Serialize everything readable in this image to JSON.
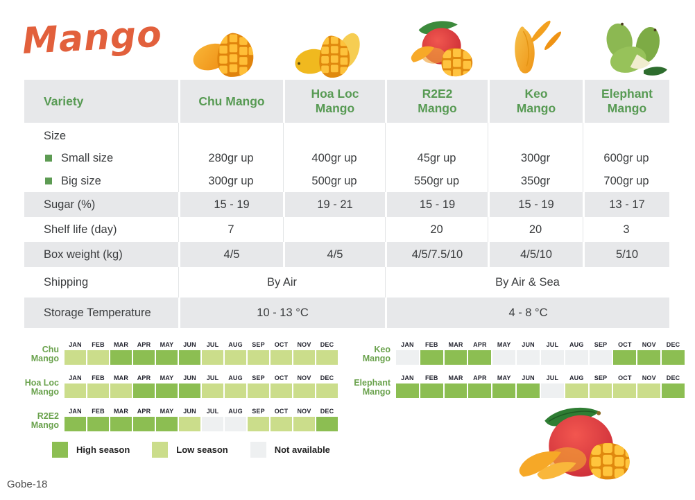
{
  "page": {
    "title": "Mango",
    "footer": "Gobe-18",
    "colors": {
      "accent_green": "#579a53",
      "title_orange": "#e2603c",
      "row_gray": "#e7e8ea"
    }
  },
  "images": {
    "chu": "chu-mango-photo",
    "hoa_loc": "hoa-loc-mango-photo",
    "r2e2": "r2e2-mango-photo",
    "keo": "keo-mango-photo",
    "elephant": "elephant-mango-photo",
    "decoration": "mango-photo"
  },
  "table": {
    "columns": [
      "Variety",
      "Chu Mango",
      "Hoa Loc Mango",
      "R2E2 Mango",
      "Keo Mango",
      "Elephant Mango"
    ],
    "size": {
      "label": "Size",
      "small_label": "Small size",
      "big_label": "Big size",
      "small": [
        "280gr up",
        "400gr up",
        "45gr up",
        "300gr",
        "600gr up"
      ],
      "big": [
        "300gr up",
        "500gr up",
        "550gr up",
        "350gr",
        "700gr up"
      ]
    },
    "sugar": {
      "label": "Sugar (%)",
      "values": [
        "15 - 19",
        "19 - 21",
        "15 - 19",
        "15 - 19",
        "13 - 17"
      ]
    },
    "shelf_life": {
      "label": "Shelf life (day)",
      "values": [
        "7",
        "",
        "20",
        "20",
        "3"
      ]
    },
    "box_weight": {
      "label": "Box weight (kg)",
      "values": [
        "4/5",
        "4/5",
        "4/5/7.5/10",
        "4/5/10",
        "5/10"
      ]
    },
    "shipping": {
      "label": "Shipping",
      "air": "By Air",
      "air_sea": "By Air & Sea"
    },
    "storage": {
      "label": "Storage Temperature",
      "cold": "10 - 13 °C",
      "warm": "4 - 8 °C"
    }
  },
  "calendars": {
    "months": [
      "JAN",
      "FEB",
      "MAR",
      "APR",
      "MAY",
      "JUN",
      "JUL",
      "AUG",
      "SEP",
      "OCT",
      "NOV",
      "DEC"
    ],
    "colors": {
      "high": "#8cbe52",
      "low": "#cbdd8b",
      "na": "#eef0f1"
    },
    "rows": [
      {
        "id": "chu",
        "block": "left",
        "label_lines": [
          "Chu",
          "Mango"
        ],
        "cells": [
          "low",
          "low",
          "high",
          "high",
          "high",
          "high",
          "low",
          "low",
          "low",
          "low",
          "low",
          "low"
        ]
      },
      {
        "id": "hoa-loc",
        "block": "left",
        "label_lines": [
          "Hoa Loc",
          "Mango"
        ],
        "cells": [
          "low",
          "low",
          "low",
          "high",
          "high",
          "high",
          "low",
          "low",
          "low",
          "low",
          "low",
          "low"
        ]
      },
      {
        "id": "r2e2",
        "block": "left",
        "label_lines": [
          "R2E2",
          "Mango"
        ],
        "cells": [
          "high",
          "high",
          "high",
          "high",
          "high",
          "low",
          "na",
          "na",
          "low",
          "low",
          "low",
          "high"
        ]
      },
      {
        "id": "keo",
        "block": "right",
        "label_lines": [
          "Keo",
          "Mango"
        ],
        "cells": [
          "na",
          "high",
          "high",
          "high",
          "na",
          "na",
          "na",
          "na",
          "na",
          "high",
          "high",
          "high"
        ]
      },
      {
        "id": "elephant",
        "block": "right",
        "label_lines": [
          "Elephant",
          "Mango"
        ],
        "cells": [
          "high",
          "high",
          "high",
          "high",
          "high",
          "high",
          "na",
          "low",
          "low",
          "low",
          "low",
          "high"
        ]
      }
    ],
    "legend": [
      {
        "state": "high",
        "label": "High season"
      },
      {
        "state": "low",
        "label": "Low season"
      },
      {
        "state": "na",
        "label": "Not available"
      }
    ]
  }
}
